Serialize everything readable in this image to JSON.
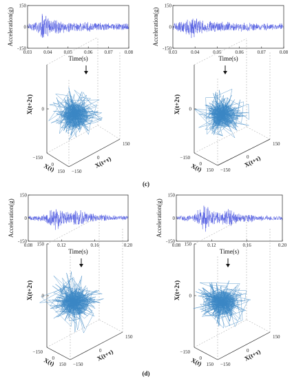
{
  "colors": {
    "trace": "#4a55e0",
    "orbit": "#3a86c4",
    "frame": "#222222"
  },
  "captions": [
    "(c)",
    "(d)"
  ],
  "chart_data": [
    {
      "type": "line",
      "panel": "c-left",
      "xlabel": "Time(s)",
      "ylabel": "Acceleration(g)",
      "xlim": [
        0.03,
        0.08
      ],
      "ylim": [
        -150,
        150
      ],
      "xticks": [
        "0.03",
        "0.04",
        "0.05",
        "0.06",
        "0.07",
        "0.08"
      ],
      "yticks": [
        "150",
        "0",
        "-150"
      ],
      "envelope": {
        "x": [
          0.03,
          0.035,
          0.0375,
          0.04,
          0.045,
          0.05,
          0.06,
          0.07,
          0.08
        ],
        "amp": [
          30,
          45,
          120,
          75,
          50,
          40,
          35,
          30,
          25
        ]
      }
    },
    {
      "type": "line",
      "panel": "c-right",
      "xlabel": "Time(s)",
      "ylabel": "Acceleration(g)",
      "xlim": [
        0.03,
        0.08
      ],
      "ylim": [
        -150,
        150
      ],
      "xticks": [
        "0.03",
        "0.04",
        "0.05",
        "0.06",
        "0.07",
        "0.08"
      ],
      "yticks": [
        "150",
        "0",
        "-150"
      ],
      "envelope": {
        "x": [
          0.03,
          0.035,
          0.0385,
          0.042,
          0.045,
          0.05,
          0.06,
          0.07,
          0.08
        ],
        "amp": [
          30,
          50,
          90,
          70,
          45,
          40,
          35,
          30,
          25
        ]
      }
    },
    {
      "type": "line",
      "panel": "d-left",
      "xlabel": "Time(s)",
      "ylabel": "Acceleration(g)",
      "xlim": [
        0.08,
        0.2
      ],
      "ylim": [
        -150,
        150
      ],
      "xticks": [
        "0.08",
        "0.12",
        "0.16",
        "0.20"
      ],
      "yticks": [
        "150",
        "0",
        "-150"
      ],
      "envelope": {
        "x": [
          0.08,
          0.1,
          0.11,
          0.115,
          0.12,
          0.13,
          0.14,
          0.15,
          0.16,
          0.18,
          0.2
        ],
        "amp": [
          15,
          25,
          90,
          110,
          60,
          40,
          70,
          35,
          30,
          20,
          15
        ]
      }
    },
    {
      "type": "line",
      "panel": "d-right",
      "xlabel": "Time(s)",
      "ylabel": "Acceleration(g)",
      "xlim": [
        0.08,
        0.2
      ],
      "ylim": [
        -150,
        150
      ],
      "xticks": [
        "0.08",
        "0.12",
        "0.16",
        "0.20"
      ],
      "yticks": [
        "150",
        "0",
        "-150"
      ],
      "envelope": {
        "x": [
          0.08,
          0.1,
          0.11,
          0.115,
          0.12,
          0.13,
          0.14,
          0.15,
          0.16,
          0.18,
          0.2
        ],
        "amp": [
          15,
          25,
          95,
          100,
          60,
          40,
          75,
          35,
          30,
          20,
          15
        ]
      }
    },
    {
      "type": "scatter",
      "panel": "c-left-phase",
      "xlabel": "X(t)",
      "ylabel": "X(t+τ)",
      "zlabel": "X(t+2τ)",
      "zticks": [
        "0"
      ],
      "xticks": [
        "−150",
        "0",
        "150"
      ],
      "yticks": [
        "150",
        "0",
        "−150"
      ],
      "lim": [
        -150,
        150
      ],
      "spread": 0.55
    },
    {
      "type": "scatter",
      "panel": "c-right-phase",
      "xlabel": "X(t)",
      "ylabel": "X(t+τ)",
      "zlabel": "X(t+2τ)",
      "zticks": [
        "0"
      ],
      "xticks": [
        "−150",
        "0",
        "150"
      ],
      "yticks": [
        "150",
        "0",
        "−150"
      ],
      "lim": [
        -150,
        150
      ],
      "spread": 0.5
    },
    {
      "type": "scatter",
      "panel": "d-left-phase",
      "xlabel": "X(t)",
      "ylabel": "X(t+τ)",
      "zlabel": "X(t+2τ)",
      "zticks": [
        "150",
        "0"
      ],
      "xticks": [
        "−150",
        "0",
        "150"
      ],
      "yticks": [
        "150",
        "0",
        "−150"
      ],
      "lim": [
        -150,
        150
      ],
      "spread": 0.65
    },
    {
      "type": "scatter",
      "panel": "d-right-phase",
      "xlabel": "X(t)",
      "ylabel": "X(t+τ)",
      "zlabel": "X(t+2τ)",
      "zticks": [
        "150",
        "0"
      ],
      "xticks": [
        "−150",
        "0",
        "150"
      ],
      "yticks": [
        "150",
        "0",
        "−150"
      ],
      "lim": [
        -150,
        150
      ],
      "spread": 0.55
    }
  ]
}
